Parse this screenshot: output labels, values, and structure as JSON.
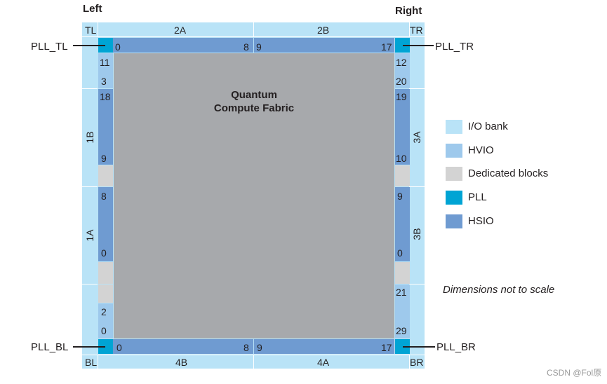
{
  "header": {
    "left": "Left",
    "right": "Right"
  },
  "corners": {
    "tl": "TL",
    "tr": "TR",
    "bl": "BL",
    "br": "BR"
  },
  "banks": {
    "top_a": "2A",
    "top_b": "2B",
    "bottom_a": "4B",
    "bottom_b": "4A",
    "left_upper": "1B",
    "left_lower": "1A",
    "right_upper": "3A",
    "right_lower": "3B"
  },
  "pll": {
    "tl": "PLL_TL",
    "tr": "PLL_TR",
    "bl": "PLL_BL",
    "br": "PLL_BR"
  },
  "numbers": {
    "top": [
      "0",
      "8",
      "9",
      "17"
    ],
    "bottom": [
      "0",
      "8",
      "9",
      "17"
    ],
    "left": [
      "11",
      "3",
      "18",
      "9",
      "8",
      "0",
      "2",
      "0"
    ],
    "right": [
      "12",
      "20",
      "19",
      "10",
      "9",
      "0",
      "21",
      "29"
    ]
  },
  "fabric": {
    "line1": "Quantum",
    "line2": "Compute Fabric"
  },
  "legend": [
    {
      "label": "I/O bank",
      "color": "#b9e3f7"
    },
    {
      "label": "HVIO",
      "color": "#9ec9ec"
    },
    {
      "label": "Dedicated blocks",
      "color": "#d3d3d3"
    },
    {
      "label": "PLL",
      "color": "#00a4d4"
    },
    {
      "label": "HSIO",
      "color": "#6f9bd1"
    }
  ],
  "note": "Dimensions not to scale",
  "watermark": "CSDN @Fol原"
}
